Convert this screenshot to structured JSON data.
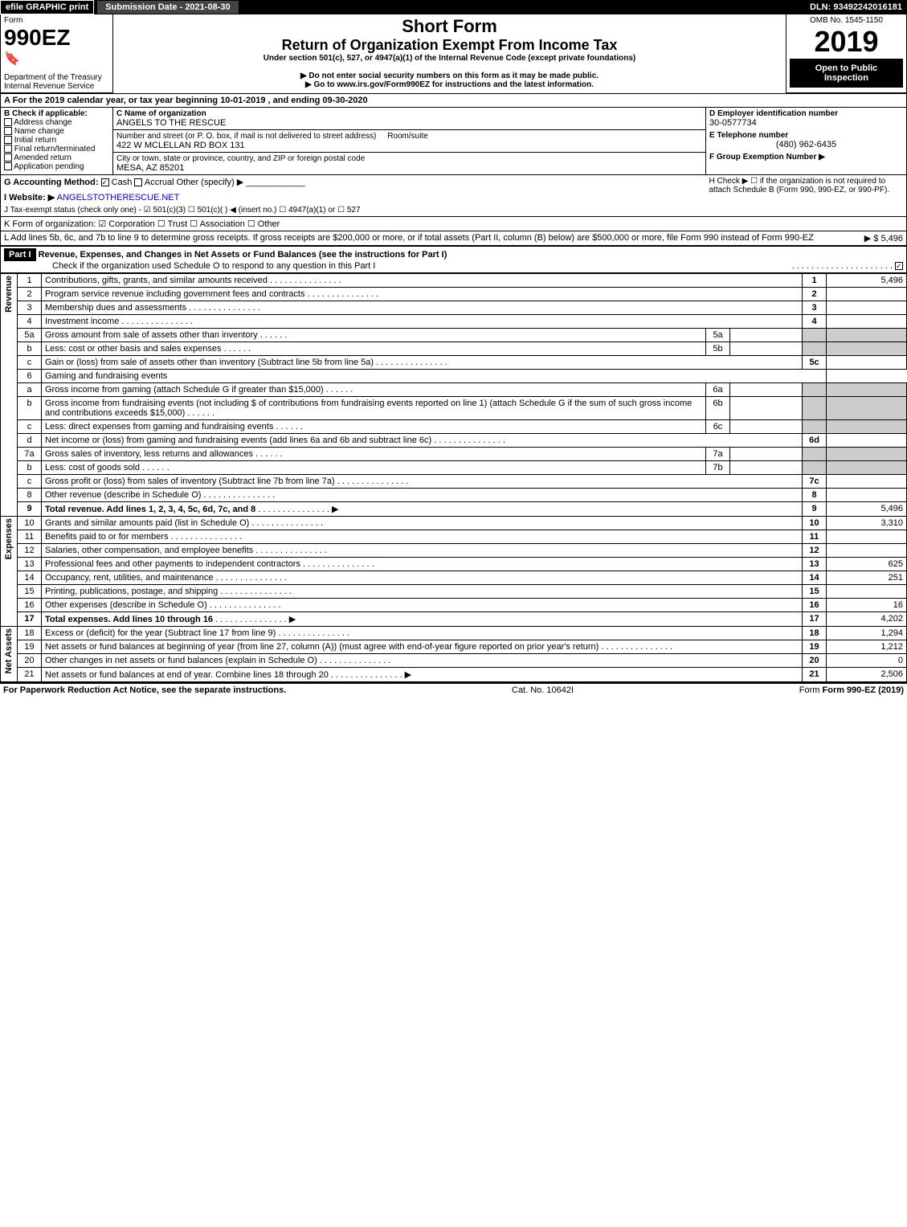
{
  "topbar": {
    "efile": "efile GRAPHIC print",
    "submit": "Submission Date - 2021-08-30",
    "dln": "DLN: 93492242016181"
  },
  "header": {
    "form": "Form",
    "form_no": "990EZ",
    "dept": "Department of the Treasury",
    "irs": "Internal Revenue Service",
    "short_form": "Short Form",
    "return_title": "Return of Organization Exempt From Income Tax",
    "under": "Under section 501(c), 527, or 4947(a)(1) of the Internal Revenue Code (except private foundations)",
    "warn": "▶ Do not enter social security numbers on this form as it may be made public.",
    "goto": "▶ Go to www.irs.gov/Form990EZ for instructions and the latest information.",
    "omb": "OMB No. 1545-1150",
    "year": "2019",
    "open": "Open to Public Inspection"
  },
  "sectionA": {
    "a_text": "A For the 2019 calendar year, or tax year beginning 10-01-2019 , and ending 09-30-2020",
    "b_label": "B Check if applicable:",
    "b_opts": [
      "Address change",
      "Name change",
      "Initial return",
      "Final return/terminated",
      "Amended return",
      "Application pending"
    ],
    "c_label": "C Name of organization",
    "c_name": "ANGELS TO THE RESCUE",
    "addr_label": "Number and street (or P. O. box, if mail is not delivered to street address)",
    "addr": "422 W MCLELLAN RD BOX 131",
    "room_label": "Room/suite",
    "city_label": "City or town, state or province, country, and ZIP or foreign postal code",
    "city": "MESA, AZ  85201",
    "d_label": "D Employer identification number",
    "d_val": "30-0577734",
    "e_label": "E Telephone number",
    "e_val": "(480) 962-6435",
    "f_label": "F Group Exemption Number ▶",
    "g_label": "G Accounting Method:",
    "g_cash": "Cash",
    "g_accr": "Accrual",
    "g_other": "Other (specify) ▶",
    "h_label": "H Check ▶ ☐ if the organization is not required to attach Schedule B (Form 990, 990-EZ, or 990-PF).",
    "i_label": "I Website: ▶",
    "i_val": "ANGELSTOTHERESCUE.NET",
    "j_label": "J Tax-exempt status (check only one) - ☑ 501(c)(3) ☐ 501(c)( ) ◀ (insert no.) ☐ 4947(a)(1) or ☐ 527",
    "k_label": "K Form of organization: ☑ Corporation ☐ Trust ☐ Association ☐ Other",
    "l_label": "L Add lines 5b, 6c, and 7b to line 9 to determine gross receipts. If gross receipts are $200,000 or more, or if total assets (Part II, column (B) below) are $500,000 or more, file Form 990 instead of Form 990-EZ",
    "l_val": "▶ $ 5,496"
  },
  "part1": {
    "title": "Part I",
    "heading": "Revenue, Expenses, and Changes in Net Assets or Fund Balances (see the instructions for Part I)",
    "check": "Check if the organization used Schedule O to respond to any question in this Part I"
  },
  "sides": {
    "rev": "Revenue",
    "exp": "Expenses",
    "na": "Net Assets"
  },
  "lines": [
    {
      "n": "1",
      "t": "Contributions, gifts, grants, and similar amounts received",
      "box": "1",
      "v": "5,496"
    },
    {
      "n": "2",
      "t": "Program service revenue including government fees and contracts",
      "box": "2",
      "v": ""
    },
    {
      "n": "3",
      "t": "Membership dues and assessments",
      "box": "3",
      "v": ""
    },
    {
      "n": "4",
      "t": "Investment income",
      "box": "4",
      "v": ""
    },
    {
      "n": "5a",
      "t": "Gross amount from sale of assets other than inventory",
      "mid": "5a",
      "v": ""
    },
    {
      "n": "b",
      "t": "Less: cost or other basis and sales expenses",
      "mid": "5b",
      "v": ""
    },
    {
      "n": "c",
      "t": "Gain or (loss) from sale of assets other than inventory (Subtract line 5b from line 5a)",
      "box": "5c",
      "v": ""
    },
    {
      "n": "6",
      "t": "Gaming and fundraising events",
      "plain": true
    },
    {
      "n": "a",
      "t": "Gross income from gaming (attach Schedule G if greater than $15,000)",
      "mid": "6a",
      "v": ""
    },
    {
      "n": "b",
      "t": "Gross income from fundraising events (not including $                      of contributions from fundraising events reported on line 1) (attach Schedule G if the sum of such gross income and contributions exceeds $15,000)",
      "mid": "6b",
      "v": ""
    },
    {
      "n": "c",
      "t": "Less: direct expenses from gaming and fundraising events",
      "mid": "6c",
      "v": ""
    },
    {
      "n": "d",
      "t": "Net income or (loss) from gaming and fundraising events (add lines 6a and 6b and subtract line 6c)",
      "box": "6d",
      "v": ""
    },
    {
      "n": "7a",
      "t": "Gross sales of inventory, less returns and allowances",
      "mid": "7a",
      "v": ""
    },
    {
      "n": "b",
      "t": "Less: cost of goods sold",
      "mid": "7b",
      "v": ""
    },
    {
      "n": "c",
      "t": "Gross profit or (loss) from sales of inventory (Subtract line 7b from line 7a)",
      "box": "7c",
      "v": ""
    },
    {
      "n": "8",
      "t": "Other revenue (describe in Schedule O)",
      "box": "8",
      "v": ""
    },
    {
      "n": "9",
      "t": "Total revenue. Add lines 1, 2, 3, 4, 5c, 6d, 7c, and 8",
      "box": "9",
      "v": "5,496",
      "bold": true,
      "arrow": true
    }
  ],
  "exp_lines": [
    {
      "n": "10",
      "t": "Grants and similar amounts paid (list in Schedule O)",
      "box": "10",
      "v": "3,310"
    },
    {
      "n": "11",
      "t": "Benefits paid to or for members",
      "box": "11",
      "v": ""
    },
    {
      "n": "12",
      "t": "Salaries, other compensation, and employee benefits",
      "box": "12",
      "v": ""
    },
    {
      "n": "13",
      "t": "Professional fees and other payments to independent contractors",
      "box": "13",
      "v": "625"
    },
    {
      "n": "14",
      "t": "Occupancy, rent, utilities, and maintenance",
      "box": "14",
      "v": "251"
    },
    {
      "n": "15",
      "t": "Printing, publications, postage, and shipping",
      "box": "15",
      "v": ""
    },
    {
      "n": "16",
      "t": "Other expenses (describe in Schedule O)",
      "box": "16",
      "v": "16"
    },
    {
      "n": "17",
      "t": "Total expenses. Add lines 10 through 16",
      "box": "17",
      "v": "4,202",
      "bold": true,
      "arrow": true
    }
  ],
  "na_lines": [
    {
      "n": "18",
      "t": "Excess or (deficit) for the year (Subtract line 17 from line 9)",
      "box": "18",
      "v": "1,294"
    },
    {
      "n": "19",
      "t": "Net assets or fund balances at beginning of year (from line 27, column (A)) (must agree with end-of-year figure reported on prior year's return)",
      "box": "19",
      "v": "1,212"
    },
    {
      "n": "20",
      "t": "Other changes in net assets or fund balances (explain in Schedule O)",
      "box": "20",
      "v": "0"
    },
    {
      "n": "21",
      "t": "Net assets or fund balances at end of year. Combine lines 18 through 20",
      "box": "21",
      "v": "2,506",
      "arrow": true
    }
  ],
  "footer": {
    "left": "For Paperwork Reduction Act Notice, see the separate instructions.",
    "mid": "Cat. No. 10642I",
    "right": "Form 990-EZ (2019)"
  }
}
